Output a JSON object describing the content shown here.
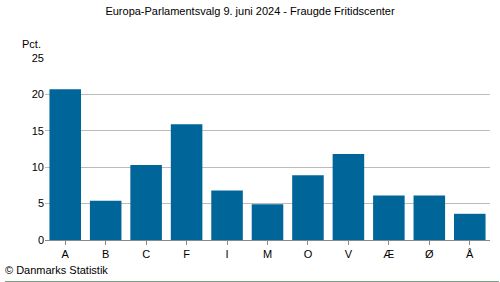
{
  "chart_data": {
    "type": "bar",
    "title": "Europa-Parlamentsvalg 9. juni 2024 - Fraugde Fritidscenter",
    "ylabel": "Pct.",
    "source": "© Danmarks Statistik",
    "categories": [
      "A",
      "B",
      "C",
      "F",
      "I",
      "M",
      "O",
      "V",
      "Æ",
      "Ø",
      "Å"
    ],
    "values": [
      20.7,
      5.4,
      10.3,
      15.9,
      6.8,
      4.9,
      8.9,
      11.8,
      6.1,
      6.1,
      3.6
    ],
    "color": "#00669a",
    "ylim": [
      0,
      25
    ],
    "yticks": [
      0,
      5,
      10,
      15,
      20,
      25
    ],
    "grid": true
  }
}
